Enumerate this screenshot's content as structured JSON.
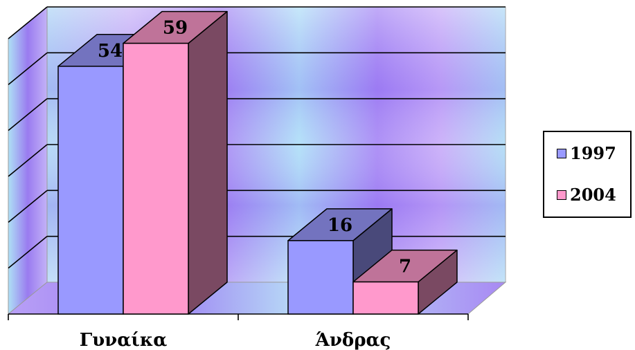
{
  "chart_data": {
    "type": "bar",
    "categories": [
      "Γυναίκα",
      "Άνδρας"
    ],
    "series": [
      {
        "name": "1997",
        "values": [
          54,
          16
        ],
        "color": "#9999ff"
      },
      {
        "name": "2004",
        "values": [
          59,
          7
        ],
        "color": "#ff99cc"
      }
    ],
    "ylim": [
      0,
      60
    ],
    "grid": true,
    "legend": "right",
    "data_labels": true,
    "three_d": true
  }
}
